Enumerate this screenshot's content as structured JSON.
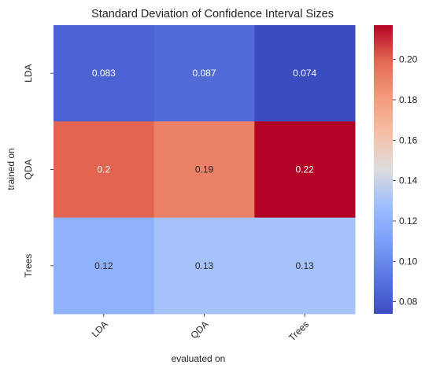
{
  "chart_data": {
    "type": "heatmap",
    "title": "Standard Deviation of Confidence Interval Sizes",
    "xlabel": "evaluated on",
    "ylabel": "trained on",
    "x_categories": [
      "LDA",
      "QDA",
      "Trees"
    ],
    "y_categories": [
      "LDA",
      "QDA",
      "Trees"
    ],
    "values": [
      [
        0.083,
        0.087,
        0.074
      ],
      [
        0.2,
        0.19,
        0.22
      ],
      [
        0.12,
        0.13,
        0.13
      ]
    ],
    "cell_labels": [
      [
        "0.083",
        "0.087",
        "0.074"
      ],
      [
        "0.2",
        "0.19",
        "0.22"
      ],
      [
        "0.12",
        "0.13",
        "0.13"
      ]
    ],
    "colormap": "coolwarm",
    "vmin": 0.074,
    "vmax": 0.217,
    "colorbar_ticks": [
      "0.08",
      "0.10",
      "0.12",
      "0.14",
      "0.16",
      "0.18",
      "0.20"
    ],
    "colorbar_tick_values": [
      0.08,
      0.1,
      0.12,
      0.14,
      0.16,
      0.18,
      0.2
    ],
    "colors": {
      "cell_text_dark": "#262626",
      "cell_text_light": "#ffffff"
    }
  }
}
